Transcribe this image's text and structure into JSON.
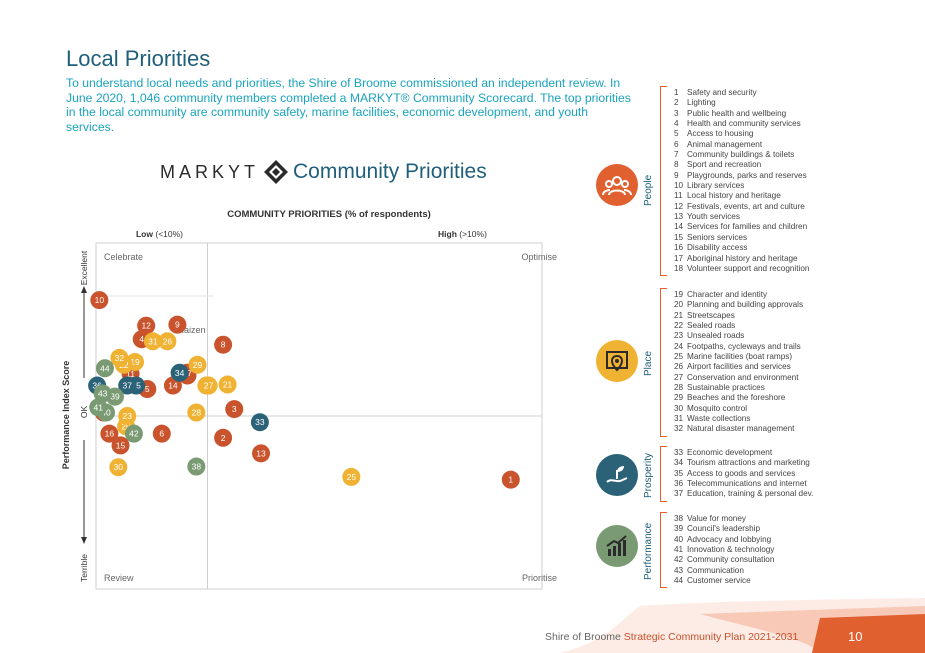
{
  "page": {
    "title": "Local Priorities",
    "intro": "To understand local needs and priorities, the Shire of Broome commissioned an independent review. In June 2020, 1,046 community members completed a MARKYT® Community Scorecard. The top priorities in the local community are community safety, marine facilities, economic development, and youth services.",
    "brand_word": "MARKYT",
    "brand_tail": "Community Priorities",
    "footer_plain": "Shire of Broome ",
    "footer_emph": "Strategic Community Plan 2021-2031",
    "page_number": "10"
  },
  "chart_data": {
    "type": "scatter",
    "title": "COMMUNITY PRIORITIES (% of respondents)",
    "xlabel_low": "Low",
    "xlabel_low_note": "(<10%)",
    "xlabel_high": "High",
    "xlabel_high_note": "(>10%)",
    "ylabel": "Performance Index Score",
    "ylabel_top": "Excellent",
    "ylabel_mid": "OK",
    "ylabel_bottom": "Terrible",
    "x_divider": 10,
    "y_divider": 50,
    "x_range": [
      0,
      40
    ],
    "y_range": [
      0,
      100
    ],
    "quadrants": {
      "top_left": "Celebrate",
      "top_right": "Optimise",
      "bottom_left": "Review",
      "bottom_right": "Prioritise",
      "inner": "Kaizen"
    },
    "colors": {
      "People": "#c9532c",
      "Place": "#f0b232",
      "Prosperity": "#2b6278",
      "Performance": "#7a9a73"
    },
    "points": [
      {
        "id": "1",
        "x": 37.2,
        "y": 31.6,
        "cat": "People"
      },
      {
        "id": "2",
        "x": 11.4,
        "y": 43.7,
        "cat": "People"
      },
      {
        "id": "3",
        "x": 12.4,
        "y": 52.0,
        "cat": "People"
      },
      {
        "id": "4",
        "x": 4.1,
        "y": 72.2,
        "cat": "People"
      },
      {
        "id": "5",
        "x": 4.6,
        "y": 57.8,
        "cat": "People"
      },
      {
        "id": "6",
        "x": 5.9,
        "y": 44.9,
        "cat": "People"
      },
      {
        "id": "7",
        "x": 8.2,
        "y": 61.7,
        "cat": "People"
      },
      {
        "id": "8",
        "x": 11.4,
        "y": 70.6,
        "cat": "People"
      },
      {
        "id": "9",
        "x": 7.3,
        "y": 76.4,
        "cat": "People"
      },
      {
        "id": "10",
        "x": 0.3,
        "y": 83.5,
        "cat": "People"
      },
      {
        "id": "11",
        "x": 3.1,
        "y": 62.2,
        "cat": "People"
      },
      {
        "id": "12",
        "x": 4.5,
        "y": 76.1,
        "cat": "People"
      },
      {
        "id": "13",
        "x": 14.8,
        "y": 39.2,
        "cat": "People"
      },
      {
        "id": "14",
        "x": 6.9,
        "y": 58.8,
        "cat": "People"
      },
      {
        "id": "15",
        "x": 2.2,
        "y": 41.5,
        "cat": "People"
      },
      {
        "id": "16",
        "x": 1.2,
        "y": 44.9,
        "cat": "People"
      },
      {
        "id": "17",
        "x": 8.2,
        "y": 62.5,
        "cat": "People"
      },
      {
        "id": "18",
        "x": 0.7,
        "y": 51.0,
        "cat": "People"
      },
      {
        "id": "19",
        "x": 3.5,
        "y": 65.6,
        "cat": "Place"
      },
      {
        "id": "20",
        "x": 2.7,
        "y": 47.0,
        "cat": "Place"
      },
      {
        "id": "21",
        "x": 11.8,
        "y": 59.1,
        "cat": "Place"
      },
      {
        "id": "22",
        "x": 2.5,
        "y": 64.8,
        "cat": "Place"
      },
      {
        "id": "23",
        "x": 2.8,
        "y": 50.0,
        "cat": "Place"
      },
      {
        "id": "24",
        "x": 9.9,
        "y": 58.8,
        "cat": "Place"
      },
      {
        "id": "25",
        "x": 22.9,
        "y": 32.4,
        "cat": "Place"
      },
      {
        "id": "26",
        "x": 6.4,
        "y": 71.6,
        "cat": "Place"
      },
      {
        "id": "27",
        "x": 10.1,
        "y": 58.8,
        "cat": "Place"
      },
      {
        "id": "28",
        "x": 9.0,
        "y": 51.0,
        "cat": "Place"
      },
      {
        "id": "29",
        "x": 9.1,
        "y": 64.8,
        "cat": "Place"
      },
      {
        "id": "30",
        "x": 2.0,
        "y": 35.2,
        "cat": "Place"
      },
      {
        "id": "31",
        "x": 5.1,
        "y": 71.6,
        "cat": "Place"
      },
      {
        "id": "32",
        "x": 2.1,
        "y": 66.8,
        "cat": "Place"
      },
      {
        "id": "33",
        "x": 14.7,
        "y": 48.2,
        "cat": "Prosperity"
      },
      {
        "id": "34",
        "x": 7.5,
        "y": 62.5,
        "cat": "Prosperity"
      },
      {
        "id": "35",
        "x": 3.6,
        "y": 58.8,
        "cat": "Prosperity"
      },
      {
        "id": "36",
        "x": 0.1,
        "y": 58.8,
        "cat": "Prosperity"
      },
      {
        "id": "37",
        "x": 2.8,
        "y": 58.8,
        "cat": "Prosperity"
      },
      {
        "id": "38",
        "x": 9.0,
        "y": 35.4,
        "cat": "Performance"
      },
      {
        "id": "39",
        "x": 1.7,
        "y": 55.6,
        "cat": "Performance"
      },
      {
        "id": "40",
        "x": 0.9,
        "y": 51.0,
        "cat": "Performance"
      },
      {
        "id": "41",
        "x": 0.2,
        "y": 52.5,
        "cat": "Performance"
      },
      {
        "id": "42",
        "x": 3.4,
        "y": 44.9,
        "cat": "Performance"
      },
      {
        "id": "43",
        "x": 0.6,
        "y": 56.5,
        "cat": "Performance"
      },
      {
        "id": "44",
        "x": 0.8,
        "y": 63.8,
        "cat": "Performance"
      }
    ]
  },
  "legend": {
    "groups": [
      {
        "name": "People",
        "icon": "people-icon",
        "items": [
          {
            "num": "1",
            "label": "Safety and security"
          },
          {
            "num": "2",
            "label": "Lighting"
          },
          {
            "num": "3",
            "label": "Public health and wellbeing"
          },
          {
            "num": "4",
            "label": "Health and community services"
          },
          {
            "num": "5",
            "label": "Access to housing"
          },
          {
            "num": "6",
            "label": "Animal management"
          },
          {
            "num": "7",
            "label": "Community buildings & toilets"
          },
          {
            "num": "8",
            "label": "Sport and recreation"
          },
          {
            "num": "9",
            "label": "Playgrounds, parks and reserves"
          },
          {
            "num": "10",
            "label": "Library services"
          },
          {
            "num": "11",
            "label": "Local history and heritage"
          },
          {
            "num": "12",
            "label": "Festivals, events, art and culture"
          },
          {
            "num": "13",
            "label": "Youth services"
          },
          {
            "num": "14",
            "label": "Services for families and children"
          },
          {
            "num": "15",
            "label": "Seniors services"
          },
          {
            "num": "16",
            "label": "Disability access"
          },
          {
            "num": "17",
            "label": "Aboriginal history and heritage"
          },
          {
            "num": "18",
            "label": "Volunteer support and recognition"
          }
        ]
      },
      {
        "name": "Place",
        "icon": "place-icon",
        "items": [
          {
            "num": "19",
            "label": "Character and identity"
          },
          {
            "num": "20",
            "label": "Planning and building approvals"
          },
          {
            "num": "21",
            "label": "Streetscapes"
          },
          {
            "num": "22",
            "label": "Sealed roads"
          },
          {
            "num": "23",
            "label": "Unsealed roads"
          },
          {
            "num": "24",
            "label": "Footpaths, cycleways and trails"
          },
          {
            "num": "25",
            "label": "Marine facilities (boat ramps)"
          },
          {
            "num": "26",
            "label": "Airport facilities and services"
          },
          {
            "num": "27",
            "label": "Conservation and environment"
          },
          {
            "num": "28",
            "label": "Sustainable practices"
          },
          {
            "num": "29",
            "label": "Beaches and the foreshore"
          },
          {
            "num": "30",
            "label": "Mosquito control"
          },
          {
            "num": "31",
            "label": "Waste collections"
          },
          {
            "num": "32",
            "label": "Natural disaster management"
          }
        ]
      },
      {
        "name": "Prosperity",
        "icon": "prosperity-icon",
        "items": [
          {
            "num": "33",
            "label": "Economic development"
          },
          {
            "num": "34",
            "label": "Tourism attractions and marketing"
          },
          {
            "num": "35",
            "label": "Access to goods and services"
          },
          {
            "num": "36",
            "label": "Telecommunications and internet"
          },
          {
            "num": "37",
            "label": "Education, training & personal dev."
          }
        ]
      },
      {
        "name": "Performance",
        "icon": "performance-icon",
        "items": [
          {
            "num": "38",
            "label": "Value for money"
          },
          {
            "num": "39",
            "label": "Council's leadership"
          },
          {
            "num": "40",
            "label": "Advocacy and lobbying"
          },
          {
            "num": "41",
            "label": "Innovation & technology"
          },
          {
            "num": "42",
            "label": "Community consultation"
          },
          {
            "num": "43",
            "label": "Communication"
          },
          {
            "num": "44",
            "label": "Customer service"
          }
        ]
      }
    ]
  }
}
